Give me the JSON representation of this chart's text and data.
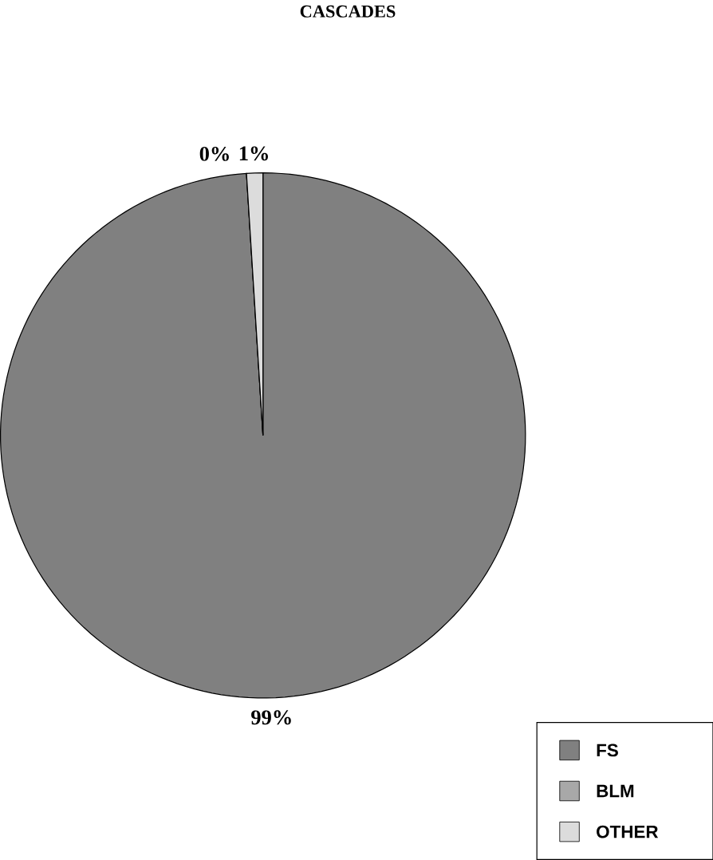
{
  "chart_data": {
    "type": "pie",
    "title": "CASCADES",
    "categories": [
      "FS",
      "BLM",
      "OTHER"
    ],
    "values": [
      99,
      0,
      1
    ],
    "colors": [
      "#808080",
      "#a8a8a8",
      "#dcdcdc"
    ],
    "value_labels": [
      "99%",
      "0%",
      "1%"
    ],
    "legend": "bottom right"
  }
}
